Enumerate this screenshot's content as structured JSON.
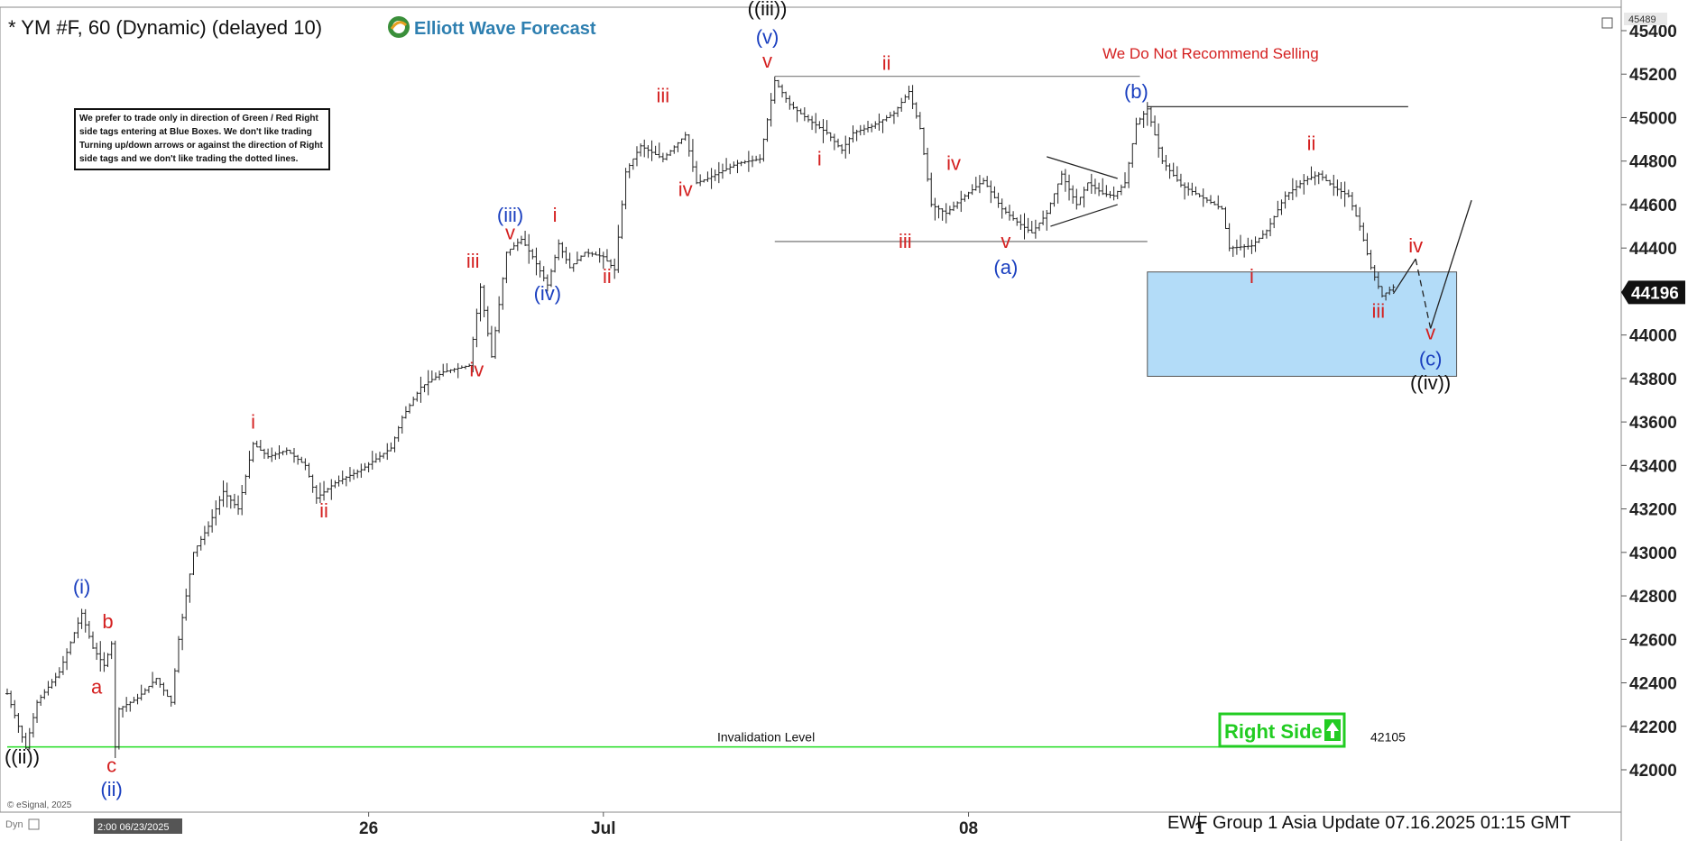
{
  "header": {
    "symbol_title": "* YM #F, 60 (Dynamic) (delayed 10)",
    "brand": "Elliott Wave Forecast",
    "top_price_tag": "45489",
    "note_lines": [
      "We prefer to trade only in direction of Green / Red Right",
      "side tags entering at Blue Boxes. We don't like trading",
      "Turning up/down arrows or against the direction of Right",
      "side tags and we don't like trading the dotted lines."
    ],
    "warning": "We Do Not Recommend Selling",
    "footer": "EWF Group 1 Asia Update 07.16.2025 01:15 GMT",
    "copyright": "© eSignal, 2025",
    "dyn_label": "Dyn",
    "time_box": "2:00 06/23/2025",
    "right_side": "Right Side",
    "invalidation_label": "Invalidation Level",
    "invalidation_value": "42105",
    "current_price": "44196"
  },
  "chart_data": {
    "type": "line",
    "title": "* YM #F, 60 (Dynamic) (delayed 10)",
    "ylim": [
      41850,
      45500
    ],
    "y_ticks": [
      42000,
      42200,
      42400,
      42600,
      42800,
      43000,
      43200,
      43400,
      43600,
      43800,
      44000,
      44200,
      44400,
      44600,
      44800,
      45000,
      45200,
      45400
    ],
    "x_ticks": [
      {
        "label": "26",
        "bar": 97
      },
      {
        "label": "Jul",
        "bar": 160
      },
      {
        "label": "08",
        "bar": 258
      },
      {
        "label": "1",
        "bar": 320
      }
    ],
    "bar_count": 435,
    "price_path": [
      [
        0,
        42350
      ],
      [
        3,
        42200
      ],
      [
        5,
        42100
      ],
      [
        8,
        42310
      ],
      [
        14,
        42450
      ],
      [
        20,
        42720
      ],
      [
        23,
        42560
      ],
      [
        26,
        42480
      ],
      [
        28,
        42580
      ],
      [
        29,
        42105
      ],
      [
        30,
        42280
      ],
      [
        35,
        42330
      ],
      [
        40,
        42420
      ],
      [
        44,
        42310
      ],
      [
        46,
        42600
      ],
      [
        50,
        43000
      ],
      [
        54,
        43120
      ],
      [
        58,
        43280
      ],
      [
        62,
        43200
      ],
      [
        66,
        43500
      ],
      [
        70,
        43440
      ],
      [
        75,
        43470
      ],
      [
        80,
        43400
      ],
      [
        83,
        43250
      ],
      [
        88,
        43320
      ],
      [
        95,
        43380
      ],
      [
        103,
        43480
      ],
      [
        106,
        43620
      ],
      [
        111,
        43760
      ],
      [
        117,
        43830
      ],
      [
        124,
        43860
      ],
      [
        127,
        44220
      ],
      [
        130,
        43900
      ],
      [
        134,
        44380
      ],
      [
        138,
        44440
      ],
      [
        141,
        44360
      ],
      [
        145,
        44230
      ],
      [
        148,
        44420
      ],
      [
        151,
        44310
      ],
      [
        155,
        44380
      ],
      [
        160,
        44360
      ],
      [
        163,
        44300
      ],
      [
        166,
        44750
      ],
      [
        170,
        44870
      ],
      [
        176,
        44810
      ],
      [
        182,
        44920
      ],
      [
        185,
        44700
      ],
      [
        188,
        44720
      ],
      [
        196,
        44790
      ],
      [
        202,
        44810
      ],
      [
        206,
        45170
      ],
      [
        210,
        45060
      ],
      [
        215,
        44990
      ],
      [
        220,
        44930
      ],
      [
        224,
        44850
      ],
      [
        227,
        44930
      ],
      [
        232,
        44960
      ],
      [
        238,
        45020
      ],
      [
        242,
        45120
      ],
      [
        245,
        44950
      ],
      [
        248,
        44600
      ],
      [
        252,
        44560
      ],
      [
        257,
        44640
      ],
      [
        262,
        44710
      ],
      [
        267,
        44580
      ],
      [
        271,
        44520
      ],
      [
        275,
        44470
      ],
      [
        279,
        44560
      ],
      [
        283,
        44740
      ],
      [
        287,
        44600
      ],
      [
        290,
        44700
      ],
      [
        294,
        44650
      ],
      [
        297,
        44640
      ],
      [
        300,
        44700
      ],
      [
        303,
        44970
      ],
      [
        306,
        45040
      ],
      [
        310,
        44800
      ],
      [
        315,
        44690
      ],
      [
        320,
        44640
      ],
      [
        326,
        44580
      ],
      [
        328,
        44400
      ],
      [
        334,
        44410
      ],
      [
        338,
        44480
      ],
      [
        343,
        44640
      ],
      [
        348,
        44710
      ],
      [
        352,
        44740
      ],
      [
        356,
        44680
      ],
      [
        360,
        44640
      ],
      [
        363,
        44500
      ],
      [
        366,
        44310
      ],
      [
        369,
        44180
      ],
      [
        372,
        44220
      ]
    ],
    "projection": [
      [
        372,
        44190
      ],
      [
        378,
        44350
      ],
      [
        382,
        44030
      ],
      [
        393,
        44620
      ]
    ],
    "blue_box": {
      "bar_start": 306,
      "bar_end": 389,
      "price_high": 44290,
      "price_low": 43810
    },
    "levels": [
      {
        "bar_start": 206,
        "bar_end": 304,
        "price": 45190,
        "color": "#888888"
      },
      {
        "bar_start": 306,
        "bar_end": 376,
        "price": 45050,
        "color": "#333333"
      },
      {
        "bar_start": 206,
        "bar_end": 306,
        "price": 44430,
        "color": "#666666"
      }
    ],
    "invalidation": {
      "price": 42105,
      "bar_start": 0,
      "bar_end": 350,
      "color": "#22dd22"
    },
    "triangle": [
      [
        279,
        44820
      ],
      [
        298,
        44720
      ],
      [
        280,
        44500
      ],
      [
        298,
        44600
      ]
    ],
    "wave_labels": [
      {
        "text": "((ii))",
        "bar": 4,
        "price": 42030,
        "color": "#111111"
      },
      {
        "text": "(i)",
        "bar": 20,
        "price": 42810,
        "color": "#1a3fbf"
      },
      {
        "text": "a",
        "bar": 24,
        "price": 42350,
        "color": "#d42020"
      },
      {
        "text": "b",
        "bar": 27,
        "price": 42650,
        "color": "#d42020"
      },
      {
        "text": "c",
        "bar": 28,
        "price": 41990,
        "color": "#d42020"
      },
      {
        "text": "(ii)",
        "bar": 28,
        "price": 41880,
        "color": "#1a3fbf"
      },
      {
        "text": "i",
        "bar": 66,
        "price": 43570,
        "color": "#d42020"
      },
      {
        "text": "ii",
        "bar": 85,
        "price": 43160,
        "color": "#d42020"
      },
      {
        "text": "iii",
        "bar": 125,
        "price": 44310,
        "color": "#d42020"
      },
      {
        "text": "iv",
        "bar": 126,
        "price": 43810,
        "color": "#d42020"
      },
      {
        "text": "(iii)",
        "bar": 135,
        "price": 44520,
        "color": "#1a3fbf"
      },
      {
        "text": "v",
        "bar": 135,
        "price": 44440,
        "color": "#d42020"
      },
      {
        "text": "(iv)",
        "bar": 145,
        "price": 44160,
        "color": "#1a3fbf"
      },
      {
        "text": "i",
        "bar": 147,
        "price": 44520,
        "color": "#d42020"
      },
      {
        "text": "ii",
        "bar": 161,
        "price": 44240,
        "color": "#d42020"
      },
      {
        "text": "iii",
        "bar": 176,
        "price": 45070,
        "color": "#d42020"
      },
      {
        "text": "iv",
        "bar": 182,
        "price": 44640,
        "color": "#d42020"
      },
      {
        "text": "((iii))",
        "bar": 204,
        "price": 45470,
        "color": "#111111"
      },
      {
        "text": "(v)",
        "bar": 204,
        "price": 45340,
        "color": "#1a3fbf"
      },
      {
        "text": "v",
        "bar": 204,
        "price": 45230,
        "color": "#d42020"
      },
      {
        "text": "i",
        "bar": 218,
        "price": 44780,
        "color": "#d42020"
      },
      {
        "text": "ii",
        "bar": 236,
        "price": 45220,
        "color": "#d42020"
      },
      {
        "text": "iii",
        "bar": 241,
        "price": 44400,
        "color": "#d42020"
      },
      {
        "text": "iv",
        "bar": 254,
        "price": 44760,
        "color": "#d42020"
      },
      {
        "text": "v",
        "bar": 268,
        "price": 44400,
        "color": "#d42020"
      },
      {
        "text": "(a)",
        "bar": 268,
        "price": 44280,
        "color": "#1a3fbf"
      },
      {
        "text": "(b)",
        "bar": 303,
        "price": 45090,
        "color": "#1a3fbf"
      },
      {
        "text": "i",
        "bar": 334,
        "price": 44240,
        "color": "#d42020"
      },
      {
        "text": "ii",
        "bar": 350,
        "price": 44850,
        "color": "#d42020"
      },
      {
        "text": "iii",
        "bar": 368,
        "price": 44080,
        "color": "#d42020"
      },
      {
        "text": "iv",
        "bar": 378,
        "price": 44380,
        "color": "#d42020"
      },
      {
        "text": "v",
        "bar": 382,
        "price": 43980,
        "color": "#d42020"
      },
      {
        "text": "(c)",
        "bar": 382,
        "price": 43860,
        "color": "#1a3fbf"
      },
      {
        "text": "((iv))",
        "bar": 382,
        "price": 43750,
        "color": "#111111"
      }
    ],
    "colors": {
      "bars": "#222222",
      "box_fill": "#b3dcf8",
      "box_stroke": "#555555",
      "right_side": "#22cc22",
      "blue": "#1a3fbf",
      "red": "#d42020"
    }
  }
}
